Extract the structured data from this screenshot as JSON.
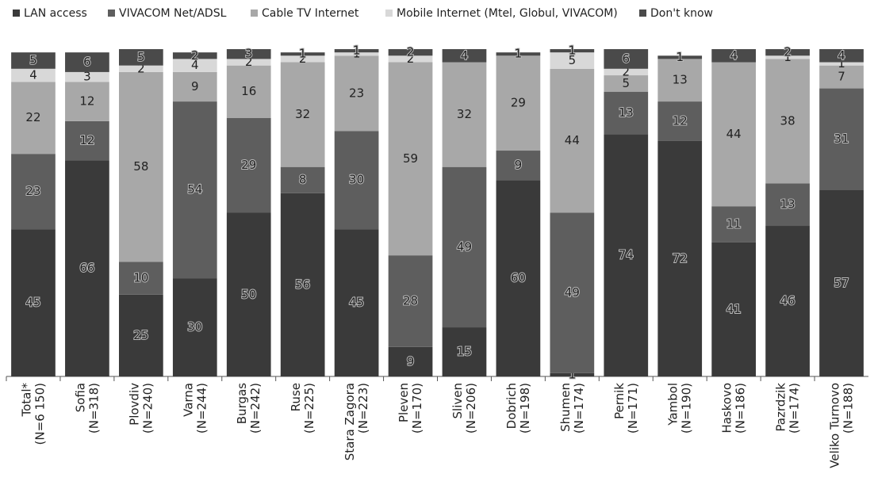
{
  "chart_data": {
    "type": "stacked_bar",
    "categories": [
      "Total* (N=6 150)",
      "Sofia (N=318)",
      "Plovdiv (N=240)",
      "Varna (N=244)",
      "Burgas (N=242)",
      "Ruse (N=225)",
      "Stara Zagora (N=223)",
      "Pleven (N=170)",
      "Sliven (N=206)",
      "Dobrich (N=198)",
      "Shumen (N=174)",
      "Pernik (N=171)",
      "Yambol (N=190)",
      "Haskovo (N=186)",
      "Pazrdzik (N=174)",
      "Veliko Turnovo (N=188)"
    ],
    "ylim": [
      0,
      100
    ],
    "series": [
      {
        "name": "LAN access",
        "color": "#3a3a3a",
        "values": [
          45,
          66,
          25,
          30,
          50,
          56,
          45,
          9,
          15,
          60,
          1,
          74,
          72,
          41,
          46,
          57
        ]
      },
      {
        "name": "VIVACOM Net/ADSL",
        "color": "#5e5e5e",
        "values": [
          23,
          12,
          10,
          54,
          29,
          8,
          30,
          28,
          49,
          9,
          49,
          13,
          12,
          11,
          13,
          31
        ]
      },
      {
        "name": "Cable TV Internet",
        "color": "#a8a8a8",
        "values": [
          22,
          12,
          58,
          9,
          16,
          32,
          23,
          59,
          32,
          29,
          44,
          5,
          13,
          44,
          38,
          7
        ]
      },
      {
        "name": "Mobile Internet (Mtel, Globul, VIVACOM)",
        "color": "#d8d8d8",
        "values": [
          4,
          3,
          2,
          4,
          2,
          2,
          1,
          2,
          0,
          0,
          5,
          2,
          0,
          0,
          1,
          1
        ]
      },
      {
        "name": "Don't know",
        "color": "#4a4a4a",
        "values": [
          5,
          6,
          5,
          2,
          3,
          1,
          1,
          2,
          4,
          1,
          1,
          6,
          1,
          4,
          2,
          4
        ]
      }
    ]
  }
}
